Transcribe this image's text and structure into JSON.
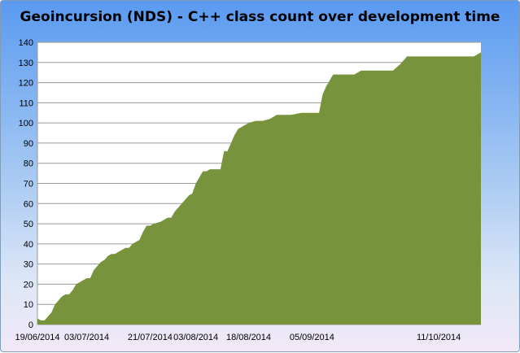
{
  "title": "Geoincursion (NDS) - C++ class count over development time",
  "colors": {
    "area": "#77933c",
    "plot_bg": "#ffffff",
    "grid": "#9a9a9a"
  },
  "chart_data": {
    "type": "area",
    "title": "Geoincursion (NDS) - C++ class count over development time",
    "xlabel": "",
    "ylabel": "",
    "ylim": [
      0,
      140
    ],
    "yticks": [
      0,
      10,
      20,
      30,
      40,
      50,
      60,
      70,
      80,
      90,
      100,
      110,
      120,
      130,
      140
    ],
    "xlim": [
      "2014-06-19",
      "2014-10-23"
    ],
    "xticks": [
      {
        "date": "2014-06-19",
        "label": "19/06/2014"
      },
      {
        "date": "2014-07-03",
        "label": "03/07/2014"
      },
      {
        "date": "2014-07-21",
        "label": "21/07/2014"
      },
      {
        "date": "2014-08-03",
        "label": "03/08/2014"
      },
      {
        "date": "2014-08-18",
        "label": "18/08/2014"
      },
      {
        "date": "2014-09-05",
        "label": "05/09/2014"
      },
      {
        "date": "2014-10-11",
        "label": "11/10/2014"
      }
    ],
    "grid": true,
    "legend": "none",
    "x": [
      "2014-06-19",
      "2014-06-20",
      "2014-06-21",
      "2014-06-23",
      "2014-06-24",
      "2014-06-25",
      "2014-06-26",
      "2014-06-27",
      "2014-06-28",
      "2014-06-29",
      "2014-06-30",
      "2014-07-01",
      "2014-07-02",
      "2014-07-03",
      "2014-07-04",
      "2014-07-05",
      "2014-07-06",
      "2014-07-07",
      "2014-07-08",
      "2014-07-09",
      "2014-07-10",
      "2014-07-11",
      "2014-07-12",
      "2014-07-14",
      "2014-07-15",
      "2014-07-16",
      "2014-07-17",
      "2014-07-18",
      "2014-07-19",
      "2014-07-20",
      "2014-07-21",
      "2014-07-22",
      "2014-07-24",
      "2014-07-25",
      "2014-07-26",
      "2014-07-27",
      "2014-07-28",
      "2014-07-29",
      "2014-07-30",
      "2014-07-31",
      "2014-08-01",
      "2014-08-02",
      "2014-08-03",
      "2014-08-05",
      "2014-08-06",
      "2014-08-07",
      "2014-08-08",
      "2014-08-09",
      "2014-08-10",
      "2014-08-11",
      "2014-08-12",
      "2014-08-13",
      "2014-08-14",
      "2014-08-15",
      "2014-08-16",
      "2014-08-17",
      "2014-08-18",
      "2014-08-20",
      "2014-08-22",
      "2014-08-24",
      "2014-08-25",
      "2014-08-26",
      "2014-08-28",
      "2014-08-30",
      "2014-09-02",
      "2014-09-05",
      "2014-09-06",
      "2014-09-07",
      "2014-09-08",
      "2014-09-09",
      "2014-09-10",
      "2014-09-11",
      "2014-09-13",
      "2014-09-15",
      "2014-09-17",
      "2014-09-18",
      "2014-09-19",
      "2014-09-22",
      "2014-09-24",
      "2014-09-26",
      "2014-09-28",
      "2014-09-30",
      "2014-10-02",
      "2014-10-03",
      "2014-10-05",
      "2014-10-07",
      "2014-10-09",
      "2014-10-11",
      "2014-10-14",
      "2014-10-16",
      "2014-10-18",
      "2014-10-20",
      "2014-10-21",
      "2014-10-22",
      "2014-10-23"
    ],
    "y": [
      3,
      2,
      2,
      6,
      10,
      12,
      14,
      15,
      15,
      17,
      20,
      21,
      22,
      23,
      23,
      27,
      29,
      31,
      32,
      34,
      35,
      35,
      36,
      38,
      38,
      40,
      41,
      42,
      46,
      49,
      49,
      50,
      51,
      52,
      53,
      53,
      56,
      58,
      60,
      62,
      64,
      65,
      70,
      76,
      76,
      77,
      77,
      77,
      77,
      86,
      86,
      90,
      94,
      97,
      98,
      99,
      100,
      101,
      101,
      102,
      103,
      104,
      104,
      104,
      105,
      105,
      105,
      105,
      114,
      118,
      121,
      124,
      124,
      124,
      124,
      125,
      126,
      126,
      126,
      126,
      126,
      129,
      133,
      133,
      133,
      133,
      133,
      133,
      133,
      133,
      133,
      133,
      133,
      134,
      135
    ]
  }
}
